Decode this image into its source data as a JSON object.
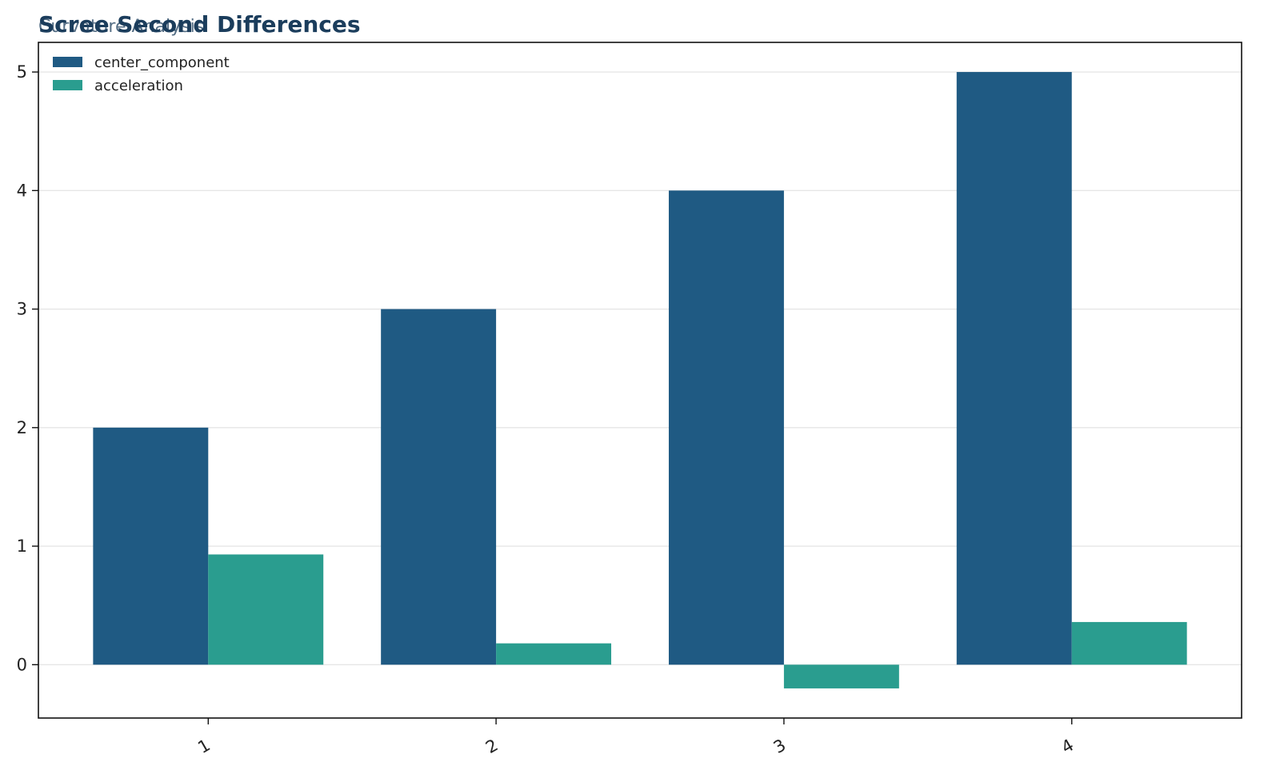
{
  "chart_data": {
    "type": "bar",
    "title": "Scree Second Differences",
    "subtitle": "Curvature Analysis",
    "xlabel": "",
    "ylabel": "",
    "categories": [
      "1",
      "2",
      "3",
      "4"
    ],
    "series": [
      {
        "name": "center_component",
        "values": [
          2,
          3,
          4,
          5
        ],
        "color": "#1f5a83"
      },
      {
        "name": "acceleration",
        "values": [
          0.93,
          0.18,
          -0.2,
          0.36
        ],
        "color": "#2a9d8f"
      }
    ],
    "ylim": [
      -0.45,
      5.25
    ],
    "yticks": [
      0,
      1,
      2,
      3,
      4,
      5
    ],
    "grid": "horizontal",
    "legend_position": "top-left"
  },
  "colors": {
    "title": "#1b3d5c",
    "subtitle": "#1b3d5c",
    "axis": "#111111",
    "grid": "#e6e6e6"
  }
}
